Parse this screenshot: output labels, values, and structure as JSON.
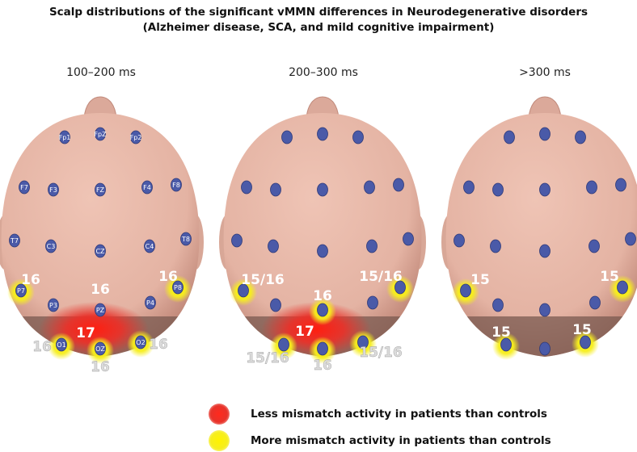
{
  "title": {
    "line1": "Scalp distributions of the significant vMMN differences in Neurodegenerative disorders",
    "line2": "(Alzheimer disease, SCA, and mild cognitive impairment)"
  },
  "panels": [
    {
      "label": "100–200 ms",
      "electrode_labels": true,
      "red": [
        {
          "at": "PZ_O"
        }
      ],
      "yellow": [
        "P7",
        "P8",
        "O1",
        "OZ",
        "O2"
      ],
      "numbers": [
        {
          "text": "16",
          "at": "P7",
          "dx": 12,
          "dy": -14,
          "color": "white"
        },
        {
          "text": "16",
          "at": "P8",
          "dx": -12,
          "dy": -14,
          "color": "white"
        },
        {
          "text": "16",
          "at": "PZ",
          "dx": 0,
          "dy": -26,
          "color": "white"
        },
        {
          "text": "17",
          "at": "PZ",
          "dx": -18,
          "dy": 28,
          "color": "white"
        },
        {
          "text": "16",
          "at": "O1",
          "dx": -24,
          "dy": 2,
          "color": "light"
        },
        {
          "text": "16",
          "at": "O2",
          "dx": 22,
          "dy": 2,
          "color": "light"
        },
        {
          "text": "16",
          "at": "OZ",
          "dx": 0,
          "dy": 22,
          "color": "light"
        }
      ]
    },
    {
      "label": "200–300 ms",
      "electrode_labels": false,
      "red": [
        {
          "at": "PZ_O"
        }
      ],
      "yellow": [
        "P7",
        "P8",
        "PZ",
        "O1",
        "OZ",
        "O2"
      ],
      "numbers": [
        {
          "text": "15/16",
          "at": "P7",
          "dx": 24,
          "dy": -14,
          "color": "white"
        },
        {
          "text": "15/16",
          "at": "P8",
          "dx": -24,
          "dy": -14,
          "color": "white"
        },
        {
          "text": "16",
          "at": "PZ",
          "dx": 0,
          "dy": -18,
          "color": "white"
        },
        {
          "text": "17",
          "at": "PZ",
          "dx": -22,
          "dy": 26,
          "color": "white"
        },
        {
          "text": "15/16",
          "at": "O1",
          "dx": -20,
          "dy": 16,
          "color": "light"
        },
        {
          "text": "15/16",
          "at": "O2",
          "dx": 22,
          "dy": 12,
          "color": "light"
        },
        {
          "text": "16",
          "at": "OZ",
          "dx": 0,
          "dy": 20,
          "color": "light"
        }
      ]
    },
    {
      "label": ">300 ms",
      "electrode_labels": false,
      "red": [],
      "yellow": [
        "P7",
        "P8",
        "O1",
        "O2"
      ],
      "numbers": [
        {
          "text": "15",
          "at": "P7",
          "dx": 18,
          "dy": -14,
          "color": "white"
        },
        {
          "text": "15",
          "at": "P8",
          "dx": -16,
          "dy": -14,
          "color": "white"
        },
        {
          "text": "15",
          "at": "O1",
          "dx": -6,
          "dy": -16,
          "color": "white"
        },
        {
          "text": "15",
          "at": "O2",
          "dx": -4,
          "dy": -16,
          "color": "white"
        }
      ]
    }
  ],
  "electrodes": [
    "Fp1",
    "FpZ",
    "Fp2",
    "F7",
    "F3",
    "FZ",
    "F4",
    "F8",
    "T7",
    "C3",
    "CZ",
    "C4",
    "T8",
    "P7",
    "P3",
    "PZ",
    "P4",
    "P8",
    "O1",
    "OZ",
    "O2"
  ],
  "legend": [
    {
      "label": "Less mismatch activity in patients than controls",
      "color": "#e8322a"
    },
    {
      "label": "More mismatch activity in patients than controls",
      "color": "#f6ee1e"
    }
  ],
  "colors": {
    "scalp": "#e4b3a3",
    "scalp_shadow": "#b97f70",
    "occipital_dark": "#7a5a50",
    "electrode": "#4a5aa8",
    "number_white": "#ffffff",
    "number_light": "#dcdcdc"
  }
}
